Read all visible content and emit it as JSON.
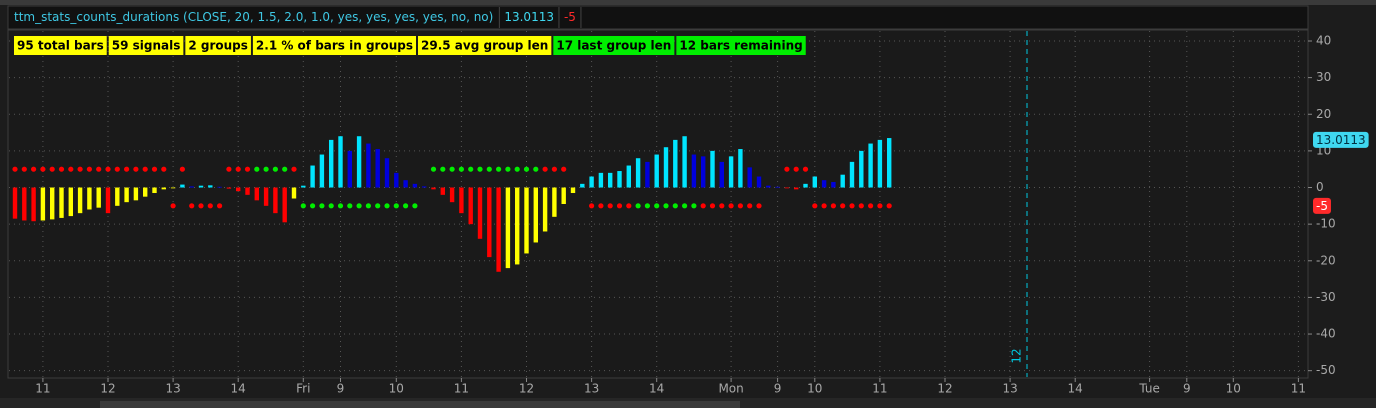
{
  "header": {
    "study": "ttm_stats_counts_durations (CLOSE, 20, 1.5, 2.0, 1.0, yes, yes, yes, yes, no, no)",
    "readouts": [
      {
        "value": 13.0113,
        "color": "#3fd8f0"
      },
      {
        "value": -5,
        "color": "#ff2a2a"
      }
    ]
  },
  "labels": [
    {
      "text": "95 total bars",
      "color": "#ffff00"
    },
    {
      "text": "59 signals",
      "color": "#ffff00"
    },
    {
      "text": "2 groups",
      "color": "#ffff00"
    },
    {
      "text": "2.1 % of bars in groups",
      "color": "#ffff00"
    },
    {
      "text": "29.5 avg group len",
      "color": "#ffff00"
    },
    {
      "text": "17 last group len",
      "color": "#00ee00"
    },
    {
      "text": "12 bars remaining",
      "color": "#00ee00"
    }
  ],
  "chart_data": {
    "type": "bar",
    "values": [
      -8.5,
      -9,
      -9.2,
      -9,
      -8.7,
      -8.3,
      -7.8,
      -7,
      -6,
      -5.5,
      -7,
      -5,
      -4,
      -3.5,
      -2.5,
      -1.5,
      -0.5,
      -0.2,
      0.8,
      0.3,
      0.5,
      0.6,
      0.2,
      -0.3,
      -1,
      -2,
      -3.5,
      -5,
      -7,
      -9.5,
      -3,
      0.5,
      6,
      9,
      13,
      14,
      10,
      14,
      12,
      10.5,
      8,
      4,
      2,
      1,
      0.3,
      -0.5,
      -2,
      -4,
      -7,
      -10,
      -14,
      -19,
      -23,
      -22,
      -21,
      -18,
      -15,
      -12,
      -8,
      -4.5,
      -1.5,
      1,
      3,
      4,
      4,
      4.5,
      6,
      8,
      7,
      9,
      11,
      13,
      14,
      9,
      8.5,
      10,
      7,
      8.5,
      10.5,
      5.5,
      3,
      0.5,
      0.2,
      -0.2,
      -0.5,
      1,
      3,
      2,
      1.5,
      3.5,
      7,
      10,
      12,
      13,
      13.5
    ],
    "palette": {
      "pos_rising": "#00e5ff",
      "pos_falling": "#0000dd",
      "neg_falling": "#ff0000",
      "neg_rising": "#ffff00"
    },
    "dot_runs": [
      {
        "from": 0,
        "to": 16,
        "value": 5,
        "color": "#ff0000"
      },
      {
        "from": 17,
        "to": 17,
        "value": -5,
        "color": "#ff0000"
      },
      {
        "from": 18,
        "to": 18,
        "value": 5,
        "color": "#ff0000"
      },
      {
        "from": 19,
        "to": 22,
        "value": -5,
        "color": "#ff0000"
      },
      {
        "from": 23,
        "to": 25,
        "value": 5,
        "color": "#ff0000"
      },
      {
        "from": 26,
        "to": 29,
        "value": 5,
        "color": "#00ee00"
      },
      {
        "from": 30,
        "to": 30,
        "value": 5,
        "color": "#ff0000"
      },
      {
        "from": 31,
        "to": 43,
        "value": -5,
        "color": "#00ee00"
      },
      {
        "from": 45,
        "to": 56,
        "value": 5,
        "color": "#00ee00"
      },
      {
        "from": 57,
        "to": 59,
        "value": 5,
        "color": "#ff0000"
      },
      {
        "from": 62,
        "to": 66,
        "value": -5,
        "color": "#ff0000"
      },
      {
        "from": 67,
        "to": 73,
        "value": -5,
        "color": "#00ee00"
      },
      {
        "from": 74,
        "to": 80,
        "value": -5,
        "color": "#ff0000"
      },
      {
        "from": 83,
        "to": 85,
        "value": 5,
        "color": "#ff0000"
      },
      {
        "from": 86,
        "to": 94,
        "value": -5,
        "color": "#ff0000"
      }
    ],
    "xlim": [
      -1,
      138.7
    ],
    "xticks": [
      {
        "value": 3,
        "label": "11"
      },
      {
        "value": 10,
        "label": "12"
      },
      {
        "value": 17,
        "label": "13"
      },
      {
        "value": 24,
        "label": "14"
      },
      {
        "value": 31,
        "label": "Fri"
      },
      {
        "value": 35,
        "label": "9"
      },
      {
        "value": 41,
        "label": "10"
      },
      {
        "value": 48,
        "label": "11"
      },
      {
        "value": 55,
        "label": "12"
      },
      {
        "value": 62,
        "label": "13"
      },
      {
        "value": 69,
        "label": "14"
      },
      {
        "value": 77,
        "label": "Mon"
      },
      {
        "value": 82,
        "label": "9"
      },
      {
        "value": 86,
        "label": "10"
      },
      {
        "value": 93,
        "label": "11"
      },
      {
        "value": 100,
        "label": "12"
      },
      {
        "value": 107,
        "label": "13"
      },
      {
        "value": 114,
        "label": "14"
      },
      {
        "value": 122,
        "label": "Tue"
      },
      {
        "value": 126,
        "label": "9"
      },
      {
        "value": 131,
        "label": "10"
      },
      {
        "value": 138,
        "label": "11"
      }
    ],
    "ylim": [
      -52,
      43
    ],
    "yticks": [
      40,
      30,
      20,
      10,
      0,
      -10,
      -20,
      -30,
      -40,
      -50
    ],
    "grid": true,
    "marker": {
      "label": "12",
      "color": "#00c8e0"
    }
  }
}
